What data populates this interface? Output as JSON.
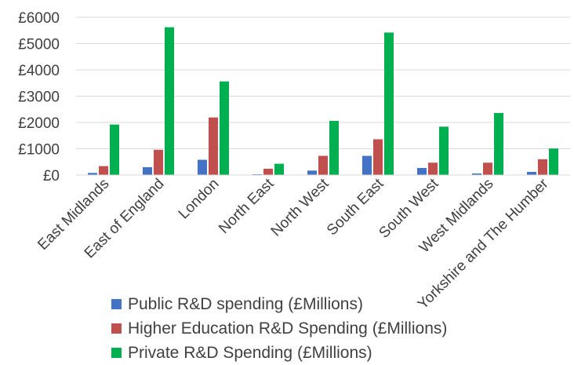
{
  "chart_data": {
    "type": "bar",
    "title": "",
    "xlabel": "",
    "ylabel": "",
    "ylim": [
      0,
      6000
    ],
    "yticks": [
      0,
      1000,
      2000,
      3000,
      4000,
      5000,
      6000
    ],
    "ytick_labels": [
      "£0",
      "£1000",
      "£2000",
      "£3000",
      "£4000",
      "£5000",
      "£6000"
    ],
    "grid": true,
    "legend_position": "bottom",
    "categories": [
      "East Midlands",
      "East of England",
      "London",
      "North East",
      "North West",
      "South East",
      "South West",
      "West Midlands",
      "Yorkshire and The Humber"
    ],
    "series": [
      {
        "name": "Public R&D spending (£Millions)",
        "color": "#4472C4",
        "values": [
          80,
          300,
          580,
          30,
          170,
          730,
          270,
          60,
          120
        ]
      },
      {
        "name": "Higher Education R&D Spending (£Millions)",
        "color": "#C0504D",
        "values": [
          340,
          960,
          2190,
          240,
          730,
          1360,
          470,
          470,
          600
        ]
      },
      {
        "name": "Private R&D Spending (£Millions)",
        "color": "#00B050",
        "values": [
          1920,
          5620,
          3560,
          430,
          2060,
          5420,
          1840,
          2360,
          1010
        ]
      }
    ]
  }
}
